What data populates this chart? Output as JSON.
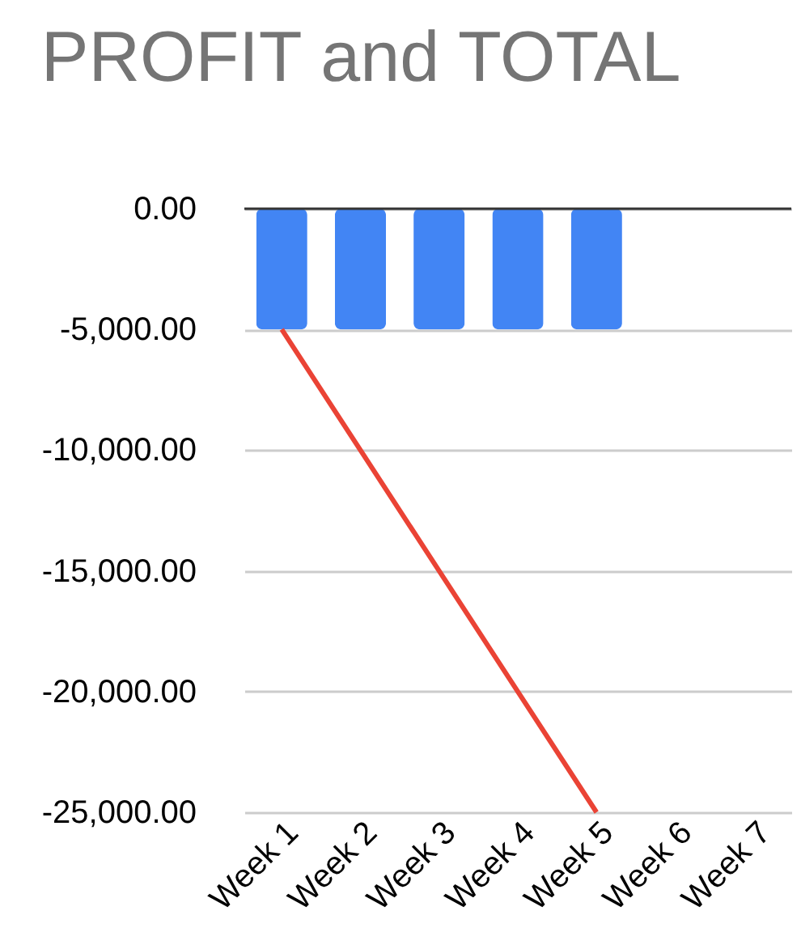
{
  "chart_data": {
    "type": "bar",
    "title": "PROFIT and TOTAL",
    "categories": [
      "Week 1",
      "Week 2",
      "Week 3",
      "Week 4",
      "Week 5",
      "Week 6",
      "Week 7"
    ],
    "series": [
      {
        "color": "#4285f4",
        "values": [
          -5000,
          -5000,
          -5000,
          -5000,
          -5000,
          null,
          null
        ]
      },
      {
        "type": "line",
        "color": "#ea4335",
        "values": [
          -5000,
          -10000,
          -15000,
          -20000,
          -25000,
          null,
          null
        ]
      }
    ],
    "ylim": [
      -25000,
      0
    ],
    "yticks": [
      {
        "value": 0,
        "label": "0.00"
      },
      {
        "value": -5000,
        "label": "-5,000.00"
      },
      {
        "value": -10000,
        "label": "-10,000.00"
      },
      {
        "value": -15000,
        "label": "-15,000.00"
      },
      {
        "value": -20000,
        "label": "-20,000.00"
      },
      {
        "value": -25000,
        "label": "-25,000.00"
      }
    ],
    "grid": "y",
    "ref_lines": [
      {
        "axis": "y",
        "value": 0,
        "color": "#333333"
      }
    ]
  }
}
